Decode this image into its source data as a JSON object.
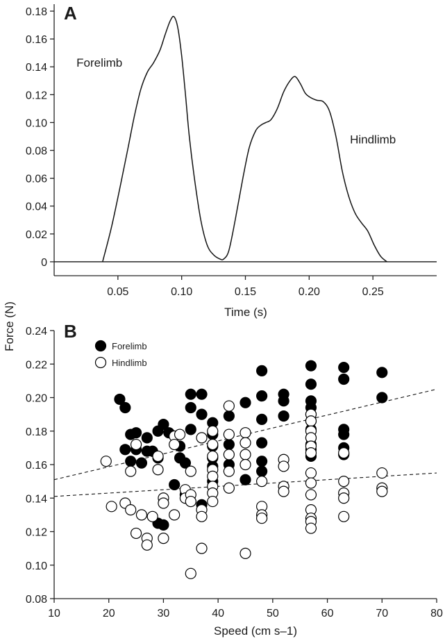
{
  "chart_data": [
    {
      "type": "line",
      "panel_label": "A",
      "title": "",
      "xlabel": "Time (s)",
      "ylabel": "",
      "xlim": [
        0.0,
        0.3
      ],
      "ylim": [
        -0.01,
        0.185
      ],
      "xticks": [
        0.05,
        0.1,
        0.15,
        0.2,
        0.25
      ],
      "xtick_labels": [
        "0.05",
        "0.10",
        "0.15",
        "0.20",
        "0.25"
      ],
      "yticks": [
        0,
        0.02,
        0.04,
        0.06,
        0.08,
        0.1,
        0.12,
        0.14,
        0.16,
        0.18
      ],
      "ytick_labels": [
        "0",
        "0.02",
        "0.04",
        "0.06",
        "0.08",
        "0.10",
        "0.12",
        "0.14",
        "0.16",
        "0.18"
      ],
      "baseline": 0,
      "annotations": [
        {
          "text": "Forelimb",
          "x": 0.0175,
          "y": 0.14
        },
        {
          "text": "Hindlimb",
          "x": 0.232,
          "y": 0.085
        }
      ],
      "series": [
        {
          "x": [
            0.038,
            0.045,
            0.052,
            0.058,
            0.063,
            0.068,
            0.073,
            0.078,
            0.083,
            0.087,
            0.091,
            0.094,
            0.097,
            0.1,
            0.103,
            0.106,
            0.11,
            0.115,
            0.12,
            0.125,
            0.13,
            0.133,
            0.137,
            0.142,
            0.148,
            0.153,
            0.158,
            0.162,
            0.166,
            0.17,
            0.175,
            0.18,
            0.185,
            0.189,
            0.193,
            0.197,
            0.201,
            0.206,
            0.211,
            0.216,
            0.221,
            0.226,
            0.231,
            0.236,
            0.241,
            0.246,
            0.251,
            0.256,
            0.261
          ],
          "y": [
            0.0,
            0.025,
            0.055,
            0.082,
            0.105,
            0.124,
            0.136,
            0.143,
            0.152,
            0.163,
            0.173,
            0.176,
            0.168,
            0.148,
            0.12,
            0.09,
            0.06,
            0.03,
            0.012,
            0.005,
            0.002,
            0.002,
            0.008,
            0.03,
            0.06,
            0.082,
            0.094,
            0.098,
            0.1,
            0.102,
            0.11,
            0.122,
            0.13,
            0.133,
            0.128,
            0.121,
            0.118,
            0.116,
            0.115,
            0.108,
            0.09,
            0.065,
            0.047,
            0.035,
            0.028,
            0.022,
            0.012,
            0.004,
            0.0
          ]
        }
      ]
    },
    {
      "type": "scatter",
      "panel_label": "B",
      "title": "",
      "xlabel": "Speed (cm s–1)",
      "ylabel": "Force (N)",
      "xlim": [
        10,
        80
      ],
      "ylim": [
        0.08,
        0.24
      ],
      "xticks": [
        10,
        20,
        30,
        40,
        50,
        60,
        70,
        80
      ],
      "xtick_labels": [
        "10",
        "20",
        "30",
        "40",
        "50",
        "60",
        "70",
        "80"
      ],
      "yticks": [
        0.08,
        0.1,
        0.12,
        0.14,
        0.16,
        0.18,
        0.2,
        0.22,
        0.24
      ],
      "ytick_labels": [
        "0.08",
        "0.10",
        "0.12",
        "0.14",
        "0.16",
        "0.18",
        "0.20",
        "0.22",
        "0.24"
      ],
      "legend_position": "top-left",
      "series": [
        {
          "name": "Forelimb",
          "marker": "filled-circle",
          "color": "#000000",
          "points": [
            [
              22,
              0.199
            ],
            [
              23,
              0.194
            ],
            [
              23,
              0.169
            ],
            [
              24,
              0.178
            ],
            [
              24,
              0.162
            ],
            [
              25,
              0.179
            ],
            [
              25,
              0.169
            ],
            [
              26,
              0.161
            ],
            [
              27,
              0.176
            ],
            [
              27,
              0.168
            ],
            [
              28,
              0.168
            ],
            [
              29,
              0.18
            ],
            [
              29,
              0.164
            ],
            [
              29,
              0.125
            ],
            [
              30,
              0.184
            ],
            [
              30,
              0.124
            ],
            [
              31,
              0.179
            ],
            [
              32,
              0.148
            ],
            [
              33,
              0.171
            ],
            [
              33,
              0.164
            ],
            [
              34,
              0.161
            ],
            [
              34,
              0.142
            ],
            [
              35,
              0.202
            ],
            [
              35,
              0.194
            ],
            [
              35,
              0.181
            ],
            [
              35,
              0.138
            ],
            [
              37,
              0.202
            ],
            [
              37,
              0.19
            ],
            [
              37,
              0.136
            ],
            [
              39,
              0.185
            ],
            [
              39,
              0.178
            ],
            [
              39,
              0.171
            ],
            [
              39,
              0.164
            ],
            [
              39,
              0.159
            ],
            [
              39,
              0.15
            ],
            [
              42,
              0.189
            ],
            [
              42,
              0.172
            ],
            [
              42,
              0.16
            ],
            [
              45,
              0.197
            ],
            [
              45,
              0.151
            ],
            [
              48,
              0.216
            ],
            [
              48,
              0.201
            ],
            [
              48,
              0.187
            ],
            [
              48,
              0.173
            ],
            [
              48,
              0.162
            ],
            [
              48,
              0.156
            ],
            [
              52,
              0.202
            ],
            [
              52,
              0.198
            ],
            [
              52,
              0.189
            ],
            [
              57,
              0.219
            ],
            [
              57,
              0.208
            ],
            [
              57,
              0.198
            ],
            [
              57,
              0.194
            ],
            [
              57,
              0.19
            ],
            [
              57,
              0.186
            ],
            [
              57,
              0.181
            ],
            [
              57,
              0.176
            ],
            [
              57,
              0.172
            ],
            [
              57,
              0.169
            ],
            [
              57,
              0.165
            ],
            [
              63,
              0.218
            ],
            [
              63,
              0.211
            ],
            [
              63,
              0.181
            ],
            [
              63,
              0.178
            ],
            [
              63,
              0.17
            ],
            [
              63,
              0.166
            ],
            [
              70,
              0.215
            ],
            [
              70,
              0.2
            ]
          ],
          "trend": {
            "x": [
              10,
              80
            ],
            "y": [
              0.151,
              0.205
            ]
          }
        },
        {
          "name": "Hindlimb",
          "marker": "open-circle",
          "color": "#000000",
          "points": [
            [
              19.5,
              0.162
            ],
            [
              20.5,
              0.135
            ],
            [
              23,
              0.137
            ],
            [
              24,
              0.156
            ],
            [
              24,
              0.133
            ],
            [
              25,
              0.119
            ],
            [
              25,
              0.172
            ],
            [
              26,
              0.13
            ],
            [
              27,
              0.116
            ],
            [
              27,
              0.112
            ],
            [
              28,
              0.129
            ],
            [
              29,
              0.165
            ],
            [
              29,
              0.157
            ],
            [
              30,
              0.14
            ],
            [
              30,
              0.137
            ],
            [
              30,
              0.116
            ],
            [
              32,
              0.177
            ],
            [
              32,
              0.172
            ],
            [
              32,
              0.13
            ],
            [
              33,
              0.178
            ],
            [
              34,
              0.145
            ],
            [
              34,
              0.14
            ],
            [
              35,
              0.156
            ],
            [
              35,
              0.142
            ],
            [
              35,
              0.138
            ],
            [
              35,
              0.095
            ],
            [
              37,
              0.176
            ],
            [
              37,
              0.133
            ],
            [
              37,
              0.129
            ],
            [
              37,
              0.11
            ],
            [
              39,
              0.18
            ],
            [
              39,
              0.172
            ],
            [
              39,
              0.165
            ],
            [
              39,
              0.157
            ],
            [
              39,
              0.153
            ],
            [
              39,
              0.147
            ],
            [
              39,
              0.143
            ],
            [
              39,
              0.138
            ],
            [
              42,
              0.195
            ],
            [
              42,
              0.178
            ],
            [
              42,
              0.166
            ],
            [
              42,
              0.156
            ],
            [
              42,
              0.146
            ],
            [
              45,
              0.179
            ],
            [
              45,
              0.173
            ],
            [
              45,
              0.166
            ],
            [
              45,
              0.16
            ],
            [
              45,
              0.107
            ],
            [
              48,
              0.15
            ],
            [
              48,
              0.135
            ],
            [
              48,
              0.13
            ],
            [
              48,
              0.128
            ],
            [
              52,
              0.163
            ],
            [
              52,
              0.159
            ],
            [
              52,
              0.147
            ],
            [
              52,
              0.144
            ],
            [
              57,
              0.19
            ],
            [
              57,
              0.186
            ],
            [
              57,
              0.18
            ],
            [
              57,
              0.176
            ],
            [
              57,
              0.171
            ],
            [
              57,
              0.167
            ],
            [
              57,
              0.155
            ],
            [
              57,
              0.149
            ],
            [
              57,
              0.142
            ],
            [
              57,
              0.133
            ],
            [
              57,
              0.128
            ],
            [
              57,
              0.126
            ],
            [
              57,
              0.122
            ],
            [
              63,
              0.167
            ],
            [
              63,
              0.15
            ],
            [
              63,
              0.143
            ],
            [
              63,
              0.14
            ],
            [
              63,
              0.129
            ],
            [
              70,
              0.155
            ],
            [
              70,
              0.146
            ],
            [
              70,
              0.144
            ]
          ],
          "trend": {
            "x": [
              10,
              80
            ],
            "y": [
              0.141,
              0.155
            ]
          }
        }
      ]
    }
  ],
  "shared_ylabel": "Force (N)"
}
